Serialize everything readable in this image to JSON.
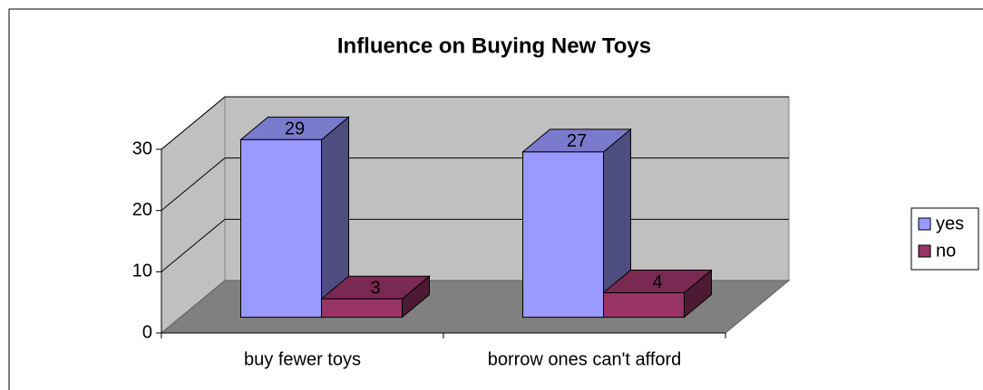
{
  "chart_data": {
    "type": "bar3d",
    "title": "Influence on Buying New Toys",
    "categories": [
      "buy fewer toys",
      "borrow ones can't afford"
    ],
    "series": [
      {
        "name": "yes",
        "color": "#9999ff",
        "values": [
          29,
          27
        ]
      },
      {
        "name": "no",
        "color": "#993366",
        "values": [
          3,
          4
        ]
      }
    ],
    "ylim": [
      0,
      30
    ],
    "yticks": [
      0,
      10,
      20,
      30
    ],
    "grid": true,
    "legend": "right"
  }
}
